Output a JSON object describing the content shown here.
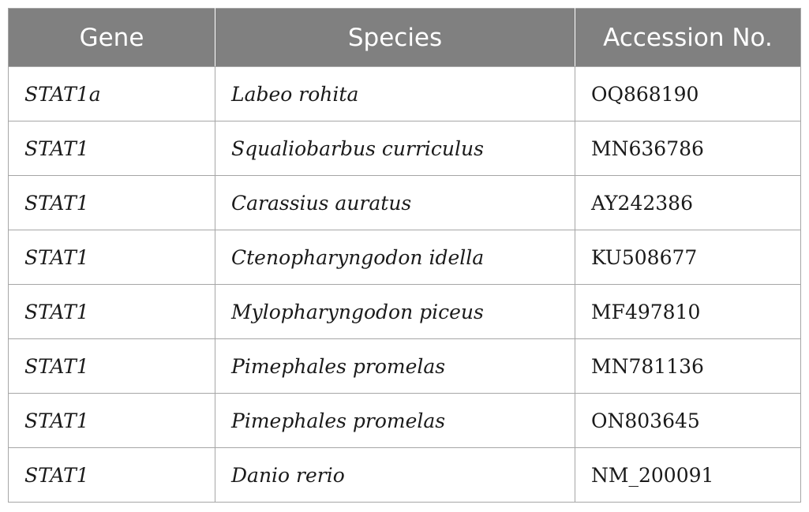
{
  "table": {
    "headers": [
      "Gene",
      "Species",
      "Accession No."
    ],
    "rows": [
      {
        "gene": "STAT1a",
        "species": "Labeo rohita",
        "accession": "OQ868190"
      },
      {
        "gene": "STAT1",
        "species": "Squaliobarbus curriculus",
        "accession": "MN636786"
      },
      {
        "gene": "STAT1",
        "species": "Carassius auratus",
        "accession": "AY242386"
      },
      {
        "gene": "STAT1",
        "species": "Ctenopharyngodon idella",
        "accession": "KU508677"
      },
      {
        "gene": "STAT1",
        "species": "Mylopharyngodon piceus",
        "accession": "MF497810"
      },
      {
        "gene": "STAT1",
        "species": "Pimephales promelas",
        "accession": "MN781136"
      },
      {
        "gene": "STAT1",
        "species": "Pimephales promelas",
        "accession": "ON803645"
      },
      {
        "gene": "STAT1",
        "species": "Danio rerio",
        "accession": "NM_200091"
      }
    ]
  },
  "colors": {
    "header_background": "#808080",
    "header_text": "#ffffff",
    "border": "#a6a6a6"
  }
}
